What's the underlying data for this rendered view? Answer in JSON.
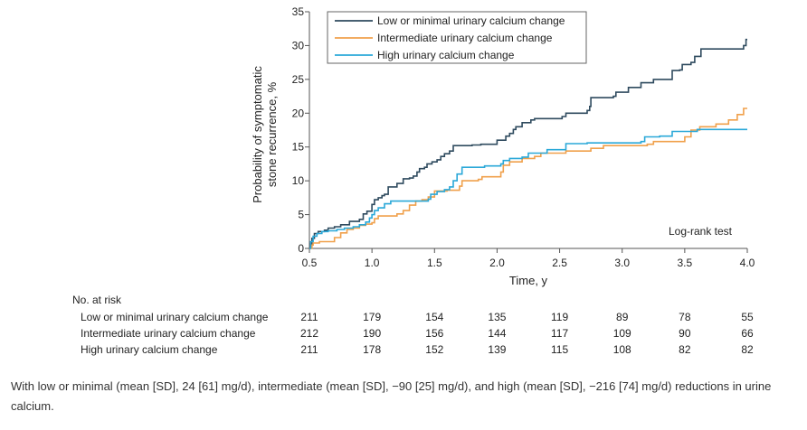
{
  "chart_data": {
    "type": "line",
    "subtype": "kaplan-meier step plot",
    "title": "",
    "xlabel": "Time, y",
    "ylabel_line1": "Probability of symptomatic",
    "ylabel_line2": "stone recurrence, %",
    "xlim": [
      0.5,
      4.0
    ],
    "ylim": [
      0,
      35
    ],
    "x_ticks": [
      0.5,
      1.0,
      1.5,
      2.0,
      2.5,
      3.0,
      3.5,
      4.0
    ],
    "x_tick_labels": [
      "0.5",
      "1.0",
      "1.5",
      "2.0",
      "2.5",
      "3.0",
      "3.5",
      "4.0"
    ],
    "y_ticks": [
      0,
      5,
      10,
      15,
      20,
      25,
      30,
      35
    ],
    "y_tick_labels": [
      "0",
      "5",
      "10",
      "15",
      "20",
      "25",
      "30",
      "35"
    ],
    "legend_position": "top",
    "annotation": "Log-rank test",
    "series": [
      {
        "name": "Low or minimal urinary calcium change",
        "color": "#2e4a5e",
        "points": [
          [
            0.5,
            0
          ],
          [
            0.51,
            0.7
          ],
          [
            0.52,
            1.5
          ],
          [
            0.54,
            2.2
          ],
          [
            0.57,
            2.5
          ],
          [
            0.62,
            2.7
          ],
          [
            0.65,
            3.0
          ],
          [
            0.7,
            3.2
          ],
          [
            0.75,
            3.5
          ],
          [
            0.82,
            4.0
          ],
          [
            0.9,
            4.3
          ],
          [
            0.93,
            5.1
          ],
          [
            0.96,
            5.5
          ],
          [
            1.0,
            6.5
          ],
          [
            1.02,
            7.2
          ],
          [
            1.05,
            7.5
          ],
          [
            1.08,
            7.8
          ],
          [
            1.1,
            8.0
          ],
          [
            1.13,
            9.1
          ],
          [
            1.2,
            9.6
          ],
          [
            1.25,
            10.3
          ],
          [
            1.3,
            10.4
          ],
          [
            1.33,
            10.7
          ],
          [
            1.36,
            11.3
          ],
          [
            1.38,
            11.8
          ],
          [
            1.42,
            12.0
          ],
          [
            1.44,
            12.5
          ],
          [
            1.48,
            12.8
          ],
          [
            1.52,
            13.1
          ],
          [
            1.55,
            13.6
          ],
          [
            1.58,
            14.0
          ],
          [
            1.62,
            14.4
          ],
          [
            1.65,
            15.2
          ],
          [
            1.8,
            15.3
          ],
          [
            1.87,
            15.4
          ],
          [
            2.0,
            16.0
          ],
          [
            2.07,
            16.6
          ],
          [
            2.1,
            17.0
          ],
          [
            2.13,
            17.6
          ],
          [
            2.15,
            18.0
          ],
          [
            2.2,
            18.6
          ],
          [
            2.27,
            19.0
          ],
          [
            2.3,
            19.2
          ],
          [
            2.52,
            19.5
          ],
          [
            2.55,
            20.0
          ],
          [
            2.72,
            20.4
          ],
          [
            2.74,
            21.0
          ],
          [
            2.75,
            22.3
          ],
          [
            2.93,
            22.5
          ],
          [
            2.95,
            23.1
          ],
          [
            3.05,
            23.8
          ],
          [
            3.15,
            24.5
          ],
          [
            3.25,
            25.0
          ],
          [
            3.4,
            26.3
          ],
          [
            3.46,
            26.4
          ],
          [
            3.48,
            27.2
          ],
          [
            3.55,
            27.5
          ],
          [
            3.58,
            28.4
          ],
          [
            3.63,
            29.5
          ],
          [
            3.97,
            30.0
          ],
          [
            3.99,
            30.9
          ],
          [
            4.0,
            30.9
          ]
        ]
      },
      {
        "name": "Intermediate urinary calcium change",
        "color": "#f0a04b",
        "points": [
          [
            0.5,
            0
          ],
          [
            0.52,
            0.5
          ],
          [
            0.53,
            0.8
          ],
          [
            0.58,
            1.0
          ],
          [
            0.7,
            1.6
          ],
          [
            0.75,
            2.3
          ],
          [
            0.8,
            2.8
          ],
          [
            0.85,
            3.0
          ],
          [
            0.9,
            3.4
          ],
          [
            0.95,
            3.6
          ],
          [
            1.0,
            3.8
          ],
          [
            1.02,
            4.4
          ],
          [
            1.05,
            4.8
          ],
          [
            1.2,
            5.1
          ],
          [
            1.25,
            5.6
          ],
          [
            1.3,
            6.4
          ],
          [
            1.35,
            7.0
          ],
          [
            1.4,
            7.2
          ],
          [
            1.45,
            7.6
          ],
          [
            1.5,
            8.5
          ],
          [
            1.6,
            8.6
          ],
          [
            1.7,
            9.2
          ],
          [
            1.72,
            10.0
          ],
          [
            1.85,
            10.2
          ],
          [
            1.88,
            10.6
          ],
          [
            2.0,
            10.6
          ],
          [
            2.03,
            11.3
          ],
          [
            2.05,
            12.3
          ],
          [
            2.1,
            12.8
          ],
          [
            2.2,
            13.3
          ],
          [
            2.3,
            13.6
          ],
          [
            2.35,
            14.1
          ],
          [
            2.5,
            14.1
          ],
          [
            2.55,
            14.4
          ],
          [
            2.75,
            14.8
          ],
          [
            2.85,
            15.2
          ],
          [
            3.2,
            15.4
          ],
          [
            3.25,
            15.8
          ],
          [
            3.5,
            16.5
          ],
          [
            3.55,
            17.5
          ],
          [
            3.62,
            18.0
          ],
          [
            3.75,
            18.4
          ],
          [
            3.85,
            19.0
          ],
          [
            3.92,
            19.8
          ],
          [
            3.97,
            20.7
          ],
          [
            4.0,
            20.7
          ]
        ]
      },
      {
        "name": "High urinary calcium change",
        "color": "#2aa8d8",
        "points": [
          [
            0.5,
            0
          ],
          [
            0.51,
            1.0
          ],
          [
            0.53,
            1.8
          ],
          [
            0.56,
            2.2
          ],
          [
            0.6,
            2.5
          ],
          [
            0.65,
            2.6
          ],
          [
            0.72,
            2.8
          ],
          [
            0.78,
            3.0
          ],
          [
            0.85,
            3.2
          ],
          [
            0.9,
            3.5
          ],
          [
            0.95,
            3.9
          ],
          [
            0.98,
            4.5
          ],
          [
            1.0,
            5.0
          ],
          [
            1.02,
            5.6
          ],
          [
            1.05,
            6.0
          ],
          [
            1.1,
            6.6
          ],
          [
            1.15,
            7.0
          ],
          [
            1.45,
            7.3
          ],
          [
            1.47,
            8.0
          ],
          [
            1.52,
            8.4
          ],
          [
            1.58,
            8.7
          ],
          [
            1.62,
            9.1
          ],
          [
            1.65,
            10.0
          ],
          [
            1.68,
            11.0
          ],
          [
            1.72,
            12.0
          ],
          [
            1.9,
            12.2
          ],
          [
            2.0,
            12.2
          ],
          [
            2.03,
            12.5
          ],
          [
            2.05,
            13.0
          ],
          [
            2.1,
            13.3
          ],
          [
            2.2,
            13.5
          ],
          [
            2.25,
            14.1
          ],
          [
            2.4,
            14.6
          ],
          [
            2.55,
            15.5
          ],
          [
            2.72,
            15.6
          ],
          [
            3.15,
            15.8
          ],
          [
            3.18,
            16.5
          ],
          [
            3.3,
            16.6
          ],
          [
            3.4,
            17.3
          ],
          [
            3.6,
            17.6
          ],
          [
            4.0,
            17.6
          ]
        ]
      }
    ],
    "risk_table": {
      "header": "No. at risk",
      "times": [
        0.5,
        1.0,
        1.5,
        2.0,
        2.5,
        3.0,
        3.5,
        4.0
      ],
      "rows": [
        {
          "label": "Low or minimal urinary calcium change",
          "values": [
            "211",
            "179",
            "154",
            "135",
            "119",
            "89",
            "78",
            "55"
          ]
        },
        {
          "label": "Intermediate urinary calcium change",
          "values": [
            "212",
            "190",
            "156",
            "144",
            "117",
            "109",
            "90",
            "66"
          ]
        },
        {
          "label": "High urinary calcium change",
          "values": [
            "211",
            "178",
            "152",
            "139",
            "115",
            "108",
            "82",
            "82"
          ]
        }
      ]
    }
  },
  "caption": "With low or minimal (mean [SD], 24 [61] mg/d), intermediate (mean [SD], −90 [25] mg/d), and high (mean [SD], −216 [74] mg/d) reductions in urine calcium."
}
